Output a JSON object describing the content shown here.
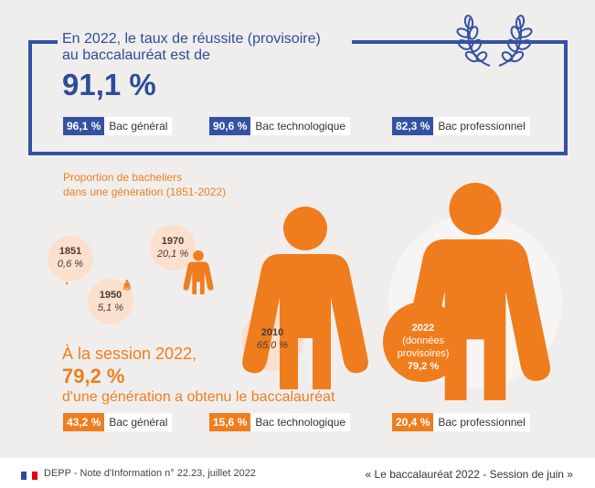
{
  "header": {
    "title_line1": "En 2022, le taux de réussite (provisoire)",
    "title_line2": "au baccalauréat est de",
    "headline": "91,1 %"
  },
  "results_2022": [
    {
      "pct": "96,1 %",
      "label": "Bac général"
    },
    {
      "pct": "90,6 %",
      "label": "Bac technologique"
    },
    {
      "pct": "82,3 %",
      "label": "Bac professionnel"
    }
  ],
  "proportion": {
    "subtitle_line1": "Proportion de bacheliers",
    "subtitle_line2": "dans une génération (1851-2022)",
    "points": [
      {
        "year": "1851",
        "value": "0,6 %"
      },
      {
        "year": "1950",
        "value": "5,1 %"
      },
      {
        "year": "1970",
        "value": "20,1 %"
      },
      {
        "year": "2010",
        "value": "65,0 %"
      },
      {
        "year": "2022",
        "note1": "(données",
        "note2": "provisoires)",
        "value": "79,2 %"
      }
    ]
  },
  "session": {
    "line1": "À la session 2022,",
    "pct": "79,2 %",
    "line2": "d'une génération a obtenu le baccalauréat"
  },
  "generation_share": [
    {
      "pct": "43,2 %",
      "label": "Bac général"
    },
    {
      "pct": "15,6 %",
      "label": "Bac technologique"
    },
    {
      "pct": "20,4 %",
      "label": "Bac professionnel"
    }
  ],
  "footer": {
    "source": "DEPP - Note d'Information n° 22.23, juillet 2022",
    "publication": "« Le baccalauréat 2022 - Session de juin »"
  },
  "colors": {
    "blue": "#2d4c9a",
    "orange": "#ef7d1e",
    "bubble": "#fbe0cd",
    "background": "#f0eeed"
  }
}
